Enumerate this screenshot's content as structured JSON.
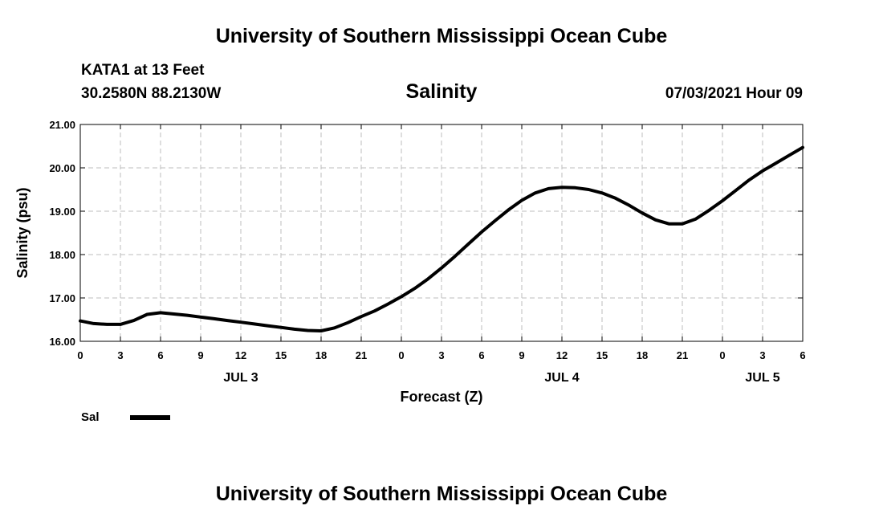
{
  "header": {
    "title": "University of Southern Mississippi Ocean Cube",
    "station": "KATA1 at 13 Feet",
    "coordinates": "30.2580N  88.2130W",
    "chart_title": "Salinity",
    "datetime": "07/03/2021 Hour 09"
  },
  "footer": {
    "title": "University of Southern Mississippi Ocean Cube"
  },
  "legend": {
    "label": "Sal"
  },
  "chart_data": {
    "type": "line",
    "title": "Salinity",
    "xlabel": "Forecast (Z)",
    "ylabel": "Salinity (psu)",
    "x_unit": "hours from 00Z JUL 3",
    "xlim": [
      0,
      54
    ],
    "ylim": [
      16.0,
      21.0
    ],
    "grid": true,
    "x_ticks": [
      0,
      3,
      6,
      9,
      12,
      15,
      18,
      21,
      24,
      27,
      30,
      33,
      36,
      39,
      42,
      45,
      48,
      51,
      54
    ],
    "x_tick_labels": [
      "0",
      "3",
      "6",
      "9",
      "12",
      "15",
      "18",
      "21",
      "0",
      "3",
      "6",
      "9",
      "12",
      "15",
      "18",
      "21",
      "0",
      "3",
      "6"
    ],
    "y_ticks": [
      16.0,
      17.0,
      18.0,
      19.0,
      20.0,
      21.0
    ],
    "y_tick_labels": [
      "16.00",
      "17.00",
      "18.00",
      "19.00",
      "20.00",
      "21.00"
    ],
    "day_labels": [
      {
        "label": "JUL 3",
        "x": 12
      },
      {
        "label": "JUL 4",
        "x": 36
      },
      {
        "label": "JUL 5",
        "x": 51
      }
    ],
    "series": [
      {
        "name": "Sal",
        "color": "#000000",
        "x": [
          0,
          1,
          2,
          3,
          4,
          5,
          6,
          7,
          8,
          9,
          10,
          11,
          12,
          13,
          14,
          15,
          16,
          17,
          18,
          19,
          20,
          21,
          22,
          23,
          24,
          25,
          26,
          27,
          28,
          29,
          30,
          31,
          32,
          33,
          34,
          35,
          36,
          37,
          38,
          39,
          40,
          41,
          42,
          43,
          44,
          45,
          46,
          47,
          48,
          49,
          50,
          51,
          52,
          53,
          54
        ],
        "values": [
          16.47,
          16.41,
          16.39,
          16.39,
          16.48,
          16.62,
          16.66,
          16.63,
          16.6,
          16.56,
          16.52,
          16.48,
          16.44,
          16.4,
          16.36,
          16.32,
          16.28,
          16.25,
          16.24,
          16.31,
          16.43,
          16.57,
          16.7,
          16.86,
          17.03,
          17.22,
          17.44,
          17.69,
          17.96,
          18.24,
          18.52,
          18.78,
          19.03,
          19.25,
          19.42,
          19.52,
          19.55,
          19.54,
          19.5,
          19.42,
          19.3,
          19.14,
          18.96,
          18.8,
          18.71,
          18.71,
          18.82,
          19.02,
          19.24,
          19.48,
          19.72,
          19.93,
          20.11,
          20.29,
          20.47
        ]
      }
    ]
  }
}
